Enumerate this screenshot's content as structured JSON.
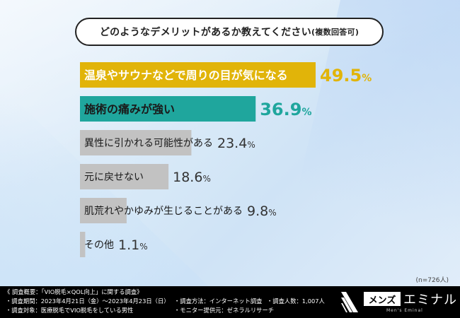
{
  "title": {
    "main": "どのようなデメリットがあるか教えてください",
    "note": "(複数回答可)"
  },
  "chart_data": {
    "type": "bar",
    "orientation": "horizontal",
    "categories": [
      "温泉やサウナなどで周りの目が気になる",
      "施術の痛みが強い",
      "異性に引かれる可能性がある",
      "元に戻せない",
      "肌荒れやかゆみが生じることがある",
      "その他"
    ],
    "values": [
      49.5,
      36.9,
      23.4,
      18.6,
      9.8,
      1.1
    ],
    "value_labels": [
      {
        "num": "49.5",
        "unit": "%"
      },
      {
        "num": "36.9",
        "unit": "%"
      },
      {
        "num": "23.4",
        "unit": "%"
      },
      {
        "num": "18.6",
        "unit": "%"
      },
      {
        "num": "9.8",
        "unit": "%"
      },
      {
        "num": "1.1",
        "unit": "%"
      }
    ],
    "colors": [
      "#e1b409",
      "#1fa69d",
      "#c2c2c2",
      "#c2c2c2",
      "#c2c2c2",
      "#c2c2c2"
    ],
    "value_colors": [
      "#e1b409",
      "#1fa69d",
      "#333333",
      "#333333",
      "#333333",
      "#333333"
    ],
    "label_colors": [
      "#ffffff",
      "#1a1a1a",
      "#1a1a1a",
      "#1a1a1a",
      "#1a1a1a",
      "#1a1a1a"
    ],
    "xlim": [
      0,
      49.5
    ],
    "grid": false,
    "legend": "none"
  },
  "sample_size": "(n=726人)",
  "footer": {
    "heading": "《 調査概要：「VIO脱毛×QOL向上」に関する調査》",
    "period": "・調査期間：2023年4月21日（金）〜2023年4月23日（日）",
    "target": "・調査対象：医療脱毛でVIO脱毛をしている男性",
    "method": "・調査方法：インターネット調査",
    "provider": "・モニター提供元：ゼネラルリサーチ",
    "respondents": "・調査人数：1,007人"
  },
  "logo": {
    "mens": "メンズ",
    "name": "エミナル",
    "sub": "Men's Eminal"
  }
}
